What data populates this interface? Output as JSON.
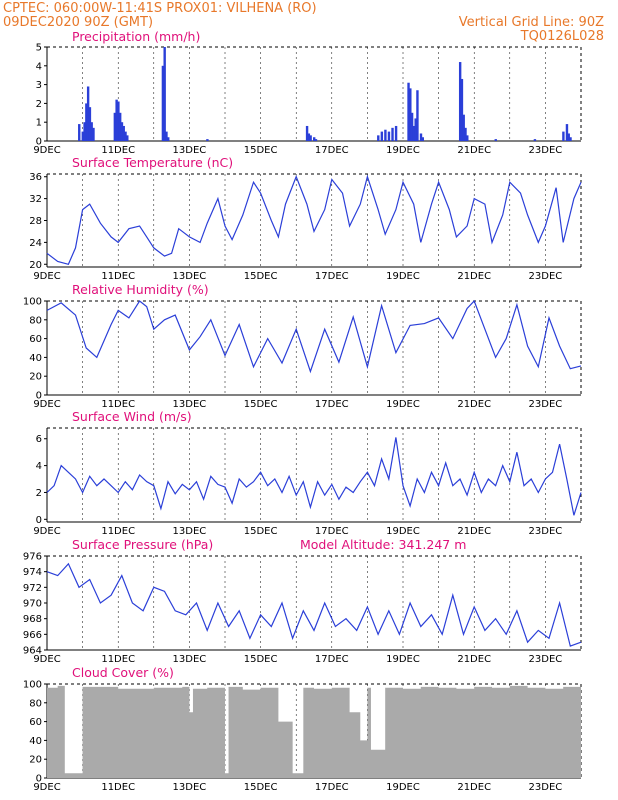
{
  "header": {
    "line1": "CPTEC:   060:00W-11:41S   PROX01: VILHENA (RO)",
    "line2_left": "09DEC2020 90Z (GMT)",
    "line2_right": "Vertical Grid Line: 90Z",
    "line3_right": "TQ0126L028"
  },
  "colors": {
    "header": "#e8782a",
    "title": "#e0107a",
    "series": "#2b3fd8",
    "cloud": "#aaaaaa",
    "grid": "#000000"
  },
  "x_axis": {
    "labels": [
      "9DEC",
      "11DEC",
      "13DEC",
      "15DEC",
      "17DEC",
      "19DEC",
      "21DEC",
      "23DEC"
    ]
  },
  "chart_data": [
    {
      "type": "bar",
      "title": "Precipitation (mm/h)",
      "ylim": [
        0,
        5
      ],
      "yticks": [
        0,
        1,
        2,
        3,
        4,
        5
      ],
      "x": [
        0.9,
        1.0,
        1.05,
        1.1,
        1.15,
        1.2,
        1.25,
        1.3,
        1.9,
        1.95,
        2.0,
        2.05,
        2.1,
        2.15,
        2.2,
        2.25,
        3.25,
        3.3,
        3.35,
        3.4,
        4.5,
        7.3,
        7.35,
        7.4,
        7.5,
        7.55,
        9.3,
        9.4,
        9.5,
        9.6,
        9.7,
        9.8,
        10.15,
        10.2,
        10.25,
        10.3,
        10.35,
        10.4,
        10.5,
        10.55,
        11.6,
        11.65,
        11.7,
        11.75,
        11.8,
        12.6,
        13.7,
        14.5,
        14.6,
        14.65,
        14.7
      ],
      "values": [
        0.9,
        0.5,
        1.0,
        2.0,
        2.9,
        1.8,
        1.0,
        0.7,
        1.5,
        2.2,
        2.1,
        1.5,
        1.0,
        0.8,
        0.5,
        0.3,
        4.0,
        5.0,
        0.5,
        0.2,
        0.1,
        0.8,
        0.4,
        0.3,
        0.2,
        0.1,
        0.3,
        0.5,
        0.6,
        0.5,
        0.7,
        0.8,
        3.1,
        2.8,
        1.5,
        0.8,
        1.2,
        2.7,
        0.4,
        0.2,
        4.2,
        3.3,
        1.4,
        0.7,
        0.3,
        0.1,
        0.1,
        0.5,
        0.9,
        0.4,
        0.2
      ]
    },
    {
      "type": "line",
      "title": "Surface Temperature (nC)",
      "ylim": [
        19.5,
        36.5
      ],
      "yticks": [
        20,
        24,
        28,
        32,
        36
      ],
      "x": [
        0,
        0.3,
        0.6,
        0.8,
        1.0,
        1.2,
        1.5,
        1.8,
        2.0,
        2.3,
        2.6,
        2.8,
        3.0,
        3.3,
        3.5,
        3.7,
        4.0,
        4.3,
        4.5,
        4.8,
        5.0,
        5.2,
        5.5,
        5.8,
        6.0,
        6.3,
        6.5,
        6.7,
        7.0,
        7.3,
        7.5,
        7.8,
        8.0,
        8.3,
        8.5,
        8.8,
        9.0,
        9.3,
        9.5,
        9.8,
        10.0,
        10.3,
        10.5,
        10.8,
        11.0,
        11.3,
        11.5,
        11.8,
        12.0,
        12.3,
        12.5,
        12.8,
        13.0,
        13.3,
        13.5,
        13.8,
        14.0,
        14.3,
        14.5,
        14.8,
        15.0
      ],
      "values": [
        22,
        20.5,
        20,
        23,
        30,
        31,
        27.5,
        25,
        24,
        26.5,
        27,
        25,
        23,
        21.5,
        22,
        26.5,
        25,
        24,
        27.5,
        32,
        27,
        24.5,
        29,
        35,
        33,
        28,
        25,
        31,
        36,
        31,
        26,
        30,
        35.5,
        33,
        27,
        31,
        36,
        30,
        25.5,
        30,
        35,
        31,
        24,
        31,
        35,
        30,
        25,
        27,
        32,
        31,
        24,
        29,
        35,
        33,
        29,
        24,
        27,
        34,
        24,
        32,
        35
      ]
    },
    {
      "type": "line",
      "title": "Relative Humidity (%)",
      "ylim": [
        0,
        100
      ],
      "yticks": [
        0,
        20,
        40,
        60,
        80,
        100
      ],
      "x": [
        0,
        0.4,
        0.8,
        1.1,
        1.4,
        1.8,
        2.0,
        2.3,
        2.6,
        2.8,
        3.0,
        3.3,
        3.6,
        4.0,
        4.3,
        4.6,
        5.0,
        5.4,
        5.8,
        6.2,
        6.6,
        7.0,
        7.4,
        7.8,
        8.2,
        8.6,
        9.0,
        9.4,
        9.8,
        10.2,
        10.6,
        11.0,
        11.4,
        11.8,
        12.0,
        12.3,
        12.6,
        12.9,
        13.2,
        13.5,
        13.8,
        14.1,
        14.4,
        14.7,
        15.0
      ],
      "values": [
        90,
        98,
        85,
        50,
        40,
        75,
        90,
        82,
        100,
        94,
        70,
        80,
        85,
        48,
        62,
        80,
        42,
        75,
        30,
        60,
        34,
        70,
        25,
        70,
        35,
        83,
        30,
        95,
        45,
        74,
        76,
        82,
        60,
        92,
        100,
        70,
        40,
        60,
        96,
        52,
        30,
        82,
        52,
        28,
        31
      ]
    },
    {
      "type": "line",
      "title": "Surface Wind (m/s)",
      "ylim": [
        -0.2,
        6.8
      ],
      "yticks": [
        0,
        2,
        4,
        6
      ],
      "x": [
        0,
        0.2,
        0.4,
        0.6,
        0.8,
        1.0,
        1.2,
        1.4,
        1.6,
        1.8,
        2.0,
        2.2,
        2.4,
        2.6,
        2.8,
        3.0,
        3.2,
        3.4,
        3.6,
        3.8,
        4.0,
        4.2,
        4.4,
        4.6,
        4.8,
        5.0,
        5.2,
        5.4,
        5.6,
        5.8,
        6.0,
        6.2,
        6.4,
        6.6,
        6.8,
        7.0,
        7.2,
        7.4,
        7.6,
        7.8,
        8.0,
        8.2,
        8.4,
        8.6,
        8.8,
        9.0,
        9.2,
        9.4,
        9.6,
        9.8,
        10.0,
        10.2,
        10.4,
        10.6,
        10.8,
        11.0,
        11.2,
        11.4,
        11.6,
        11.8,
        12.0,
        12.2,
        12.4,
        12.6,
        12.8,
        13.0,
        13.2,
        13.4,
        13.6,
        13.8,
        14.0,
        14.2,
        14.4,
        14.6,
        14.8,
        15.0
      ],
      "values": [
        2.0,
        2.5,
        4.0,
        3.5,
        3.0,
        2.0,
        3.2,
        2.5,
        3.0,
        2.5,
        2.0,
        2.8,
        2.2,
        3.3,
        2.8,
        2.5,
        0.8,
        2.8,
        1.9,
        2.6,
        2.2,
        2.8,
        1.5,
        3.2,
        2.6,
        2.4,
        1.2,
        3.0,
        2.4,
        2.8,
        3.5,
        2.5,
        3.0,
        2.0,
        3.2,
        1.8,
        2.8,
        0.9,
        2.8,
        1.8,
        2.6,
        1.5,
        2.4,
        2.0,
        2.8,
        3.5,
        2.5,
        4.5,
        3.0,
        6.1,
        2.5,
        1.0,
        3.0,
        2.0,
        3.5,
        2.5,
        4.2,
        2.5,
        3.0,
        1.8,
        3.5,
        2.0,
        3.0,
        2.5,
        4.0,
        2.8,
        5.0,
        2.5,
        3.0,
        2.0,
        3.0,
        3.5,
        5.6,
        3.0,
        0.3,
        2.0
      ]
    },
    {
      "type": "line",
      "title": "Surface Pressure (hPa)",
      "annotation": "Model Altitude: 341.247 m",
      "ylim": [
        964,
        976
      ],
      "yticks": [
        964,
        966,
        968,
        970,
        972,
        974,
        976
      ],
      "x": [
        0,
        0.3,
        0.6,
        0.9,
        1.2,
        1.5,
        1.8,
        2.1,
        2.4,
        2.7,
        3.0,
        3.3,
        3.6,
        3.9,
        4.2,
        4.5,
        4.8,
        5.1,
        5.4,
        5.7,
        6.0,
        6.3,
        6.6,
        6.9,
        7.2,
        7.5,
        7.8,
        8.1,
        8.4,
        8.7,
        9.0,
        9.3,
        9.6,
        9.9,
        10.2,
        10.5,
        10.8,
        11.1,
        11.4,
        11.7,
        12.0,
        12.3,
        12.6,
        12.9,
        13.2,
        13.5,
        13.8,
        14.1,
        14.4,
        14.7,
        15.0
      ],
      "values": [
        974,
        973.5,
        975,
        972,
        973,
        970,
        971,
        973.5,
        970,
        969,
        972,
        971.5,
        969,
        968.5,
        970,
        966.5,
        970,
        967,
        969,
        965.5,
        968.5,
        967,
        970,
        965.5,
        969,
        966.5,
        970,
        967,
        968,
        966.5,
        969.5,
        966,
        969,
        966,
        970,
        967,
        968.5,
        966,
        971,
        966,
        969.5,
        966.5,
        968,
        966,
        969,
        965,
        966.5,
        965.5,
        970,
        964.5,
        965
      ]
    },
    {
      "type": "bar",
      "title": "Cloud Cover (%)",
      "ylim": [
        0,
        100
      ],
      "yticks": [
        0,
        20,
        40,
        60,
        80,
        100
      ],
      "x": [
        0,
        0.3,
        0.5,
        1.0,
        2.0,
        3.0,
        3.8,
        4.0,
        4.1,
        4.5,
        5.0,
        5.1,
        5.5,
        6.0,
        6.5,
        6.9,
        7.2,
        7.5,
        8.0,
        8.5,
        8.8,
        9.0,
        9.1,
        9.5,
        10.0,
        10.5,
        11.0,
        11.5,
        12.0,
        12.5,
        13.0,
        13.5,
        14.0,
        14.5,
        15.0
      ],
      "values": [
        96,
        98,
        5,
        97,
        95,
        96,
        97,
        70,
        95,
        96,
        5,
        97,
        94,
        96,
        60,
        5,
        96,
        95,
        96,
        70,
        40,
        96,
        30,
        96,
        95,
        97,
        96,
        95,
        97,
        96,
        98,
        96,
        95,
        97,
        96
      ]
    }
  ]
}
